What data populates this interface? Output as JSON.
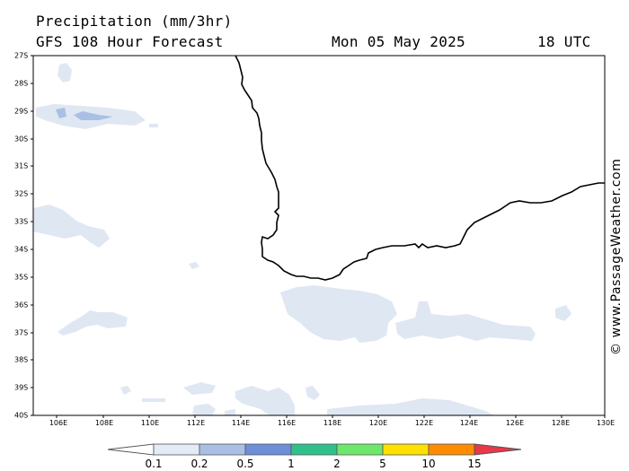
{
  "header": {
    "title": "Precipitation (mm/3hr)",
    "subtitle": "GFS 108 Hour Forecast",
    "date": "Mon 05 May 2025",
    "time": "18 UTC"
  },
  "credit": "© www.PassageWeather.com",
  "map": {
    "region": "South-western Australia and adjacent Indian / Southern Ocean",
    "lat_labels": [
      "27S",
      "28S",
      "29S",
      "30S",
      "31S",
      "32S",
      "33S",
      "34S",
      "35S",
      "36S",
      "37S",
      "38S",
      "39S",
      "40S"
    ],
    "lon_labels": [
      "106E",
      "108E",
      "110E",
      "112E",
      "114E",
      "116E",
      "118E",
      "120E",
      "122E",
      "124E",
      "126E",
      "128E",
      "130E"
    ],
    "coastline_color": "#000000",
    "precip_fill_colors": {
      "0.1-0.2": "#dfe7f3",
      "0.2-0.5": "#a9c0e4"
    }
  },
  "legend": {
    "labels": [
      "0.1",
      "0.2",
      "0.5",
      "1",
      "2",
      "5",
      "10",
      "15"
    ],
    "colors": [
      "#e3ebf6",
      "#a9c0e4",
      "#6d8fd8",
      "#30c08c",
      "#6ee86a",
      "#ffe100",
      "#ff8c00",
      "#e8384a"
    ],
    "low_arrow_color": "#ffffff",
    "units": "mm/3hr"
  }
}
